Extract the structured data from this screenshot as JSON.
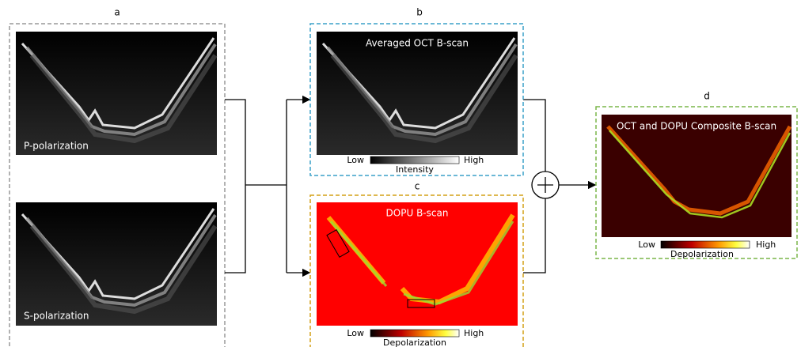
{
  "panels": [
    {
      "label": "a",
      "images": [
        "P-polarization",
        "S-polarization"
      ]
    },
    {
      "label": "b",
      "title": "Averaged OCT B-scan",
      "colorbar": {
        "low": "Low",
        "high": "High",
        "label": "Intensity"
      }
    },
    {
      "label": "c",
      "title": "DOPU B-scan",
      "colorbar": {
        "low": "Low",
        "high": "High",
        "label": "Depolarization"
      }
    },
    {
      "label": "d",
      "title": "OCT and DOPU Composite B-scan",
      "colorbar": {
        "low": "Low",
        "high": "High",
        "label": "Depolarization"
      }
    }
  ]
}
